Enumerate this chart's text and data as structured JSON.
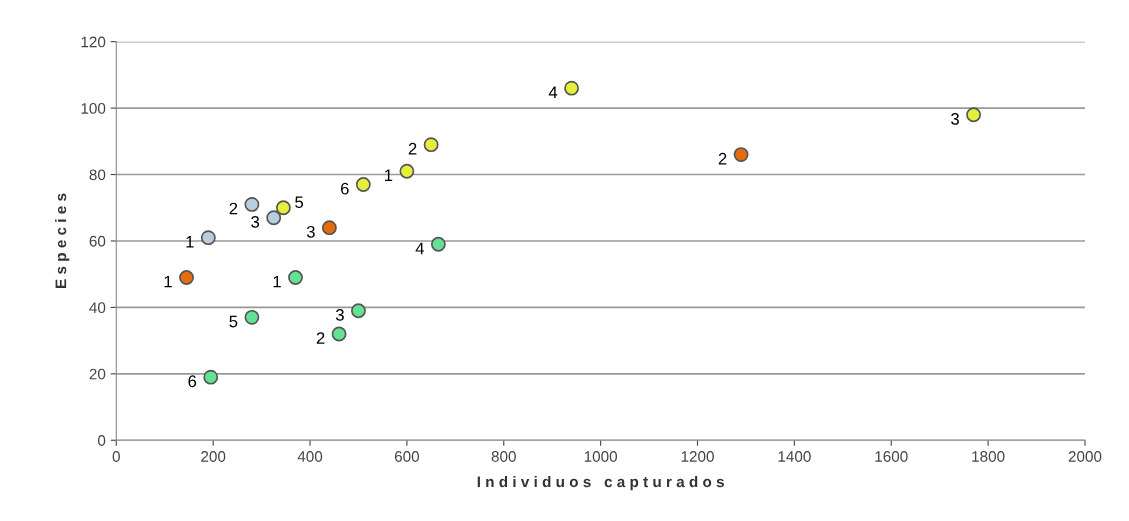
{
  "chart_data": {
    "type": "scatter",
    "xlabel": "I n d i v i d u o s   c a p t u r a d o s",
    "ylabel": "E s p e c i e s",
    "xlim": [
      0,
      2000
    ],
    "xticks": [
      0,
      200,
      400,
      600,
      800,
      1000,
      1200,
      1400,
      1600,
      1800,
      2000
    ],
    "ylim": [
      0,
      120
    ],
    "yticks": [
      0,
      20,
      40,
      60,
      80,
      100,
      120
    ],
    "grid": "y",
    "legend": false,
    "marker": "circle",
    "series": [
      {
        "color": "#e46c0a",
        "x": [
          145,
          1290,
          440
        ],
        "values": [
          49,
          86,
          64
        ]
      },
      {
        "color": "#b9cde0",
        "x": [
          190,
          280,
          325
        ],
        "values": [
          61,
          71,
          67
        ]
      },
      {
        "color": "#e6ee3c",
        "x": [
          600,
          650,
          1770,
          940,
          345,
          510
        ],
        "values": [
          81,
          89,
          98,
          106,
          70,
          77
        ]
      },
      {
        "color": "#62e294",
        "x": [
          370,
          460,
          500,
          665,
          280,
          195
        ],
        "values": [
          49,
          32,
          39,
          59,
          37,
          19
        ]
      }
    ],
    "annotations": [
      {
        "text": "1",
        "x": 145,
        "y": 49
      },
      {
        "text": "2",
        "x": 1290,
        "y": 86
      },
      {
        "text": "3",
        "x": 440,
        "y": 64
      },
      {
        "text": "1",
        "x": 190,
        "y": 61
      },
      {
        "text": "2",
        "x": 280,
        "y": 71
      },
      {
        "text": "3",
        "x": 325,
        "y": 67
      },
      {
        "text": "1",
        "x": 600,
        "y": 81
      },
      {
        "text": "2",
        "x": 650,
        "y": 89
      },
      {
        "text": "3",
        "x": 1770,
        "y": 98
      },
      {
        "text": "4",
        "x": 940,
        "y": 106
      },
      {
        "text": "5",
        "x": 345,
        "y": 70
      },
      {
        "text": "6",
        "x": 510,
        "y": 77
      },
      {
        "text": "1",
        "x": 370,
        "y": 49
      },
      {
        "text": "2",
        "x": 460,
        "y": 32
      },
      {
        "text": "3",
        "x": 500,
        "y": 39
      },
      {
        "text": "4",
        "x": 665,
        "y": 59
      },
      {
        "text": "5",
        "x": 280,
        "y": 37
      },
      {
        "text": "6",
        "x": 195,
        "y": 19
      }
    ]
  }
}
